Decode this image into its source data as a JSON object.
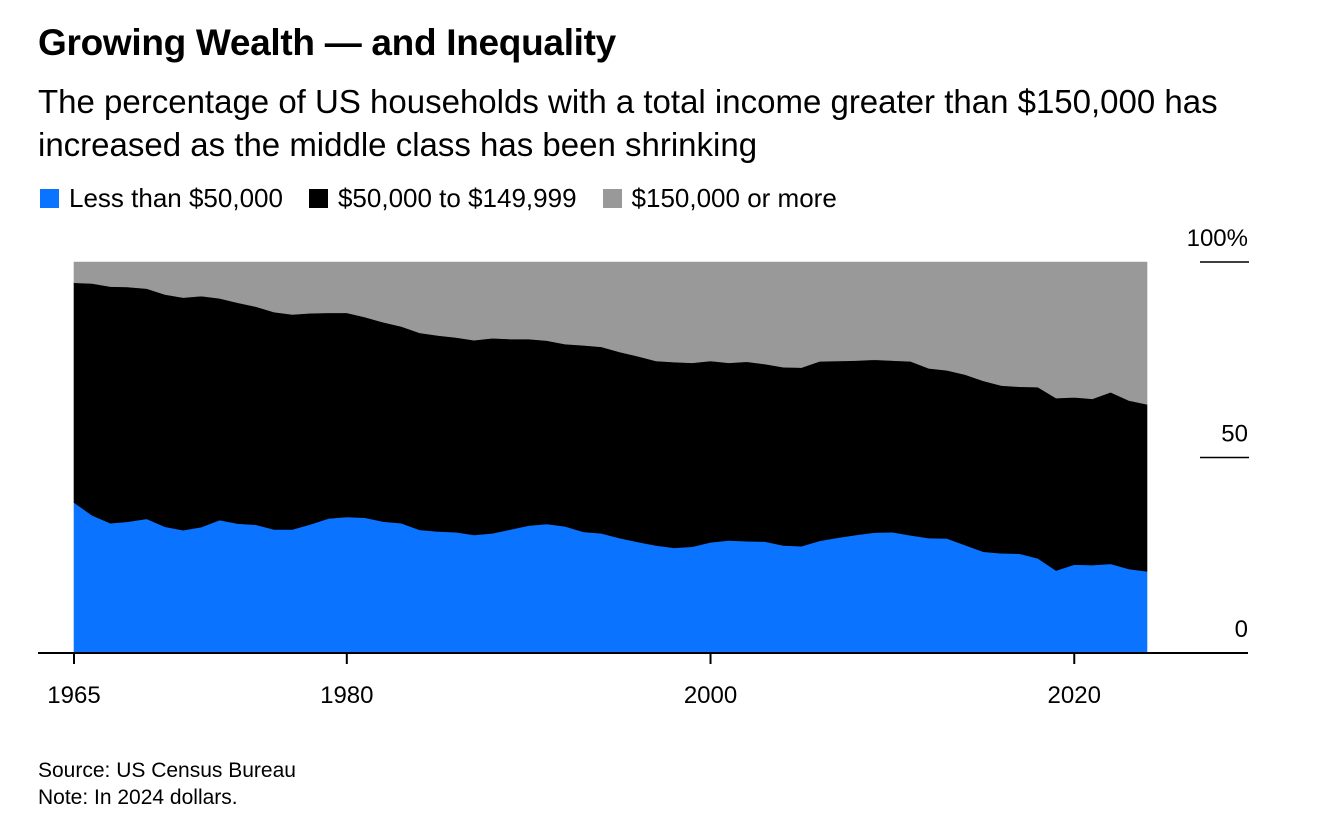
{
  "title": "Growing Wealth — and Inequality",
  "subtitle": "The percentage of US households with a total income greater than $150,000 has increased as the middle class has been shrinking",
  "legend": {
    "items": [
      {
        "label": "Less than $50,000",
        "color": "#0a73ff"
      },
      {
        "label": "$50,000 to $149,999",
        "color": "#000000"
      },
      {
        "label": "$150,000 or more",
        "color": "#999999"
      }
    ]
  },
  "footer": {
    "source": "Source: US Census Bureau",
    "note": "Note: In 2024 dollars."
  },
  "chart_data": {
    "type": "area",
    "stacked": true,
    "title": "Growing Wealth — and Inequality",
    "xlabel": "",
    "ylabel": "",
    "xlim": [
      1965,
      2029
    ],
    "ylim": [
      0,
      100
    ],
    "x_ticks": [
      {
        "value": 1965,
        "label": "1965"
      },
      {
        "value": 1980,
        "label": "1980"
      },
      {
        "value": 2000,
        "label": "2000"
      },
      {
        "value": 2020,
        "label": "2020"
      }
    ],
    "y_ticks": [
      {
        "value": 0,
        "label": "0"
      },
      {
        "value": 50,
        "label": "50"
      },
      {
        "value": 100,
        "label": "100%"
      }
    ],
    "x": [
      1965,
      1966,
      1967,
      1968,
      1969,
      1970,
      1971,
      1972,
      1973,
      1974,
      1975,
      1976,
      1977,
      1978,
      1979,
      1980,
      1981,
      1982,
      1983,
      1984,
      1985,
      1986,
      1987,
      1988,
      1989,
      1990,
      1991,
      1992,
      1993,
      1994,
      1995,
      1996,
      1997,
      1998,
      1999,
      2000,
      2001,
      2002,
      2003,
      2004,
      2005,
      2006,
      2007,
      2008,
      2009,
      2010,
      2011,
      2012,
      2013,
      2014,
      2015,
      2016,
      2017,
      2018,
      2019,
      2020,
      2021,
      2022,
      2023,
      2024
    ],
    "series": [
      {
        "name": "Less than $50,000",
        "color": "#0a73ff",
        "values": [
          38.5,
          35.2,
          33.2,
          33.6,
          34.3,
          32.3,
          31.4,
          32.2,
          34.0,
          33.1,
          32.8,
          31.6,
          31.6,
          32.9,
          34.4,
          34.8,
          34.6,
          33.6,
          33.2,
          31.5,
          31.1,
          30.9,
          30.2,
          30.6,
          31.6,
          32.6,
          33.0,
          32.4,
          31.0,
          30.6,
          29.4,
          28.4,
          27.5,
          26.9,
          27.2,
          28.3,
          28.8,
          28.6,
          28.5,
          27.5,
          27.3,
          28.7,
          29.5,
          30.2,
          30.8,
          30.9,
          30.1,
          29.4,
          29.3,
          27.6,
          25.9,
          25.5,
          25.4,
          24.2,
          21.1,
          22.6,
          22.5,
          22.8,
          21.5,
          20.9
        ]
      },
      {
        "name": "$50,000 to $149,999",
        "color": "#000000",
        "values": [
          56.2,
          59.3,
          60.5,
          60.0,
          58.9,
          59.4,
          59.5,
          59.1,
          56.7,
          56.5,
          55.8,
          55.6,
          55.0,
          54.0,
          52.6,
          52.2,
          51.3,
          51.0,
          50.3,
          50.4,
          50.1,
          49.8,
          49.8,
          49.9,
          48.7,
          47.7,
          46.9,
          46.6,
          47.7,
          47.7,
          47.6,
          47.5,
          47.2,
          47.5,
          47.0,
          46.4,
          45.4,
          45.9,
          45.4,
          45.6,
          45.7,
          45.9,
          45.2,
          44.6,
          44.2,
          43.9,
          44.5,
          43.4,
          43.0,
          43.6,
          43.7,
          42.9,
          42.7,
          43.8,
          44.1,
          42.8,
          42.5,
          43.9,
          43.1,
          42.7
        ]
      },
      {
        "name": "$150,000 or more",
        "color": "#999999",
        "values": [
          5.3,
          5.5,
          6.3,
          6.4,
          6.8,
          8.3,
          9.1,
          8.7,
          9.3,
          10.4,
          11.4,
          12.8,
          13.4,
          13.1,
          13.0,
          13.0,
          14.1,
          15.4,
          16.5,
          18.1,
          18.8,
          19.3,
          20.0,
          19.5,
          19.7,
          19.7,
          20.1,
          21.0,
          21.3,
          21.7,
          23.0,
          24.1,
          25.3,
          25.6,
          25.8,
          25.3,
          25.8,
          25.5,
          26.1,
          26.9,
          27.0,
          25.4,
          25.3,
          25.2,
          25.0,
          25.2,
          25.4,
          27.2,
          27.7,
          28.8,
          30.4,
          31.6,
          31.9,
          32.0,
          34.8,
          34.6,
          35.0,
          33.3,
          35.4,
          36.4
        ]
      }
    ]
  }
}
